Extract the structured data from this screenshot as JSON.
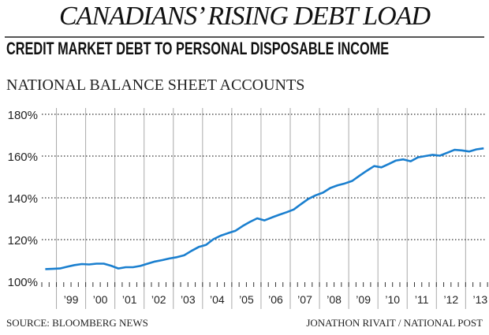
{
  "header": {
    "title": "CANADIANS’ RISING DEBT LOAD",
    "subtitle": "CREDIT MARKET DEBT TO PERSONAL DISPOSABLE INCOME",
    "caption": "NATIONAL BALANCE SHEET ACCOUNTS"
  },
  "footer": {
    "source": "SOURCE: BLOOMBERG NEWS",
    "credit": "JONATHON RIVAIT / NATIONAL POST"
  },
  "chart_data": {
    "type": "line",
    "title": "Credit market debt to personal disposable income",
    "xlabel": "",
    "ylabel": "",
    "xlim": [
      1998.5,
      2013.8
    ],
    "ylim": [
      100,
      180
    ],
    "yticks": [
      100,
      120,
      140,
      160,
      180
    ],
    "ytick_labels": [
      "100%",
      "120%",
      "140%",
      "160%",
      "180%"
    ],
    "xticks": [
      1999,
      2000,
      2001,
      2002,
      2003,
      2004,
      2005,
      2006,
      2007,
      2008,
      2009,
      2010,
      2011,
      2012,
      2013
    ],
    "xtick_labels": [
      "’99",
      "’00",
      "’01",
      "’02",
      "’03",
      "’04",
      "’05",
      "’06",
      "’07",
      "’08",
      "’09",
      "’10",
      "’11",
      "’12",
      "’13"
    ],
    "grid": "horizontal dotted, vertical year lines",
    "series": [
      {
        "name": "Debt to disposable income (%)",
        "color": "#1a7fcf",
        "x_start": 1998.62,
        "x_step": 0.25,
        "values": [
          105.9,
          106,
          106.2,
          107,
          107.8,
          108.3,
          108.1,
          108.5,
          108.5,
          107.5,
          106.2,
          106.8,
          106.8,
          107.4,
          108.5,
          109.5,
          110.2,
          111,
          111.6,
          112.5,
          114.6,
          116.5,
          117.5,
          120.2,
          121.9,
          123.1,
          124.2,
          126.5,
          128.5,
          130.2,
          129.2,
          130.6,
          131.9,
          133.1,
          134.4,
          137,
          139.5,
          141.2,
          142.5,
          144.7,
          146,
          146.9,
          148.1,
          150.6,
          153,
          155.2,
          154.6,
          156.2,
          157.9,
          158.4,
          157.5,
          159.4,
          160,
          160.6,
          160.2,
          161.6,
          163,
          162.7,
          162.2,
          163.2,
          163.7
        ]
      }
    ]
  }
}
